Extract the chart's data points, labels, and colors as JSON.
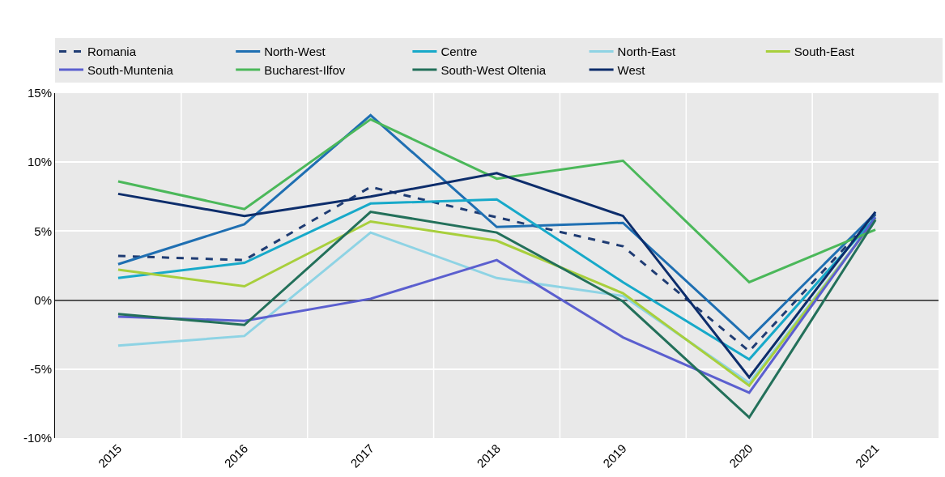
{
  "chart_data": {
    "type": "line",
    "categories": [
      "2015",
      "2016",
      "2017",
      "2018",
      "2019",
      "2020",
      "2021"
    ],
    "series": [
      {
        "name": "Romania",
        "color": "#1f3c73",
        "line_style": "dashed",
        "values": [
          3.2,
          2.9,
          8.2,
          6.0,
          3.9,
          -3.7,
          6.2
        ]
      },
      {
        "name": "North-West",
        "color": "#1f6fb2",
        "values": [
          2.6,
          5.5,
          13.4,
          5.3,
          5.6,
          -2.8,
          6.3
        ]
      },
      {
        "name": "Centre",
        "color": "#17a9c9",
        "values": [
          1.6,
          2.7,
          7.0,
          7.3,
          1.3,
          -4.3,
          6.0
        ]
      },
      {
        "name": "North-East",
        "color": "#8ed3e4",
        "values": [
          -3.3,
          -2.6,
          4.9,
          1.6,
          0.3,
          -6.0,
          5.9
        ]
      },
      {
        "name": "South-East",
        "color": "#a8cf3c",
        "values": [
          2.2,
          1.0,
          5.7,
          4.3,
          0.5,
          -6.2,
          5.9
        ]
      },
      {
        "name": "South-Muntenia",
        "color": "#5b5fcf",
        "values": [
          -1.2,
          -1.5,
          0.1,
          2.9,
          -2.7,
          -6.7,
          6.0
        ]
      },
      {
        "name": "Bucharest-Ilfov",
        "color": "#4bb85a",
        "values": [
          8.6,
          6.6,
          13.1,
          8.8,
          10.1,
          1.3,
          5.1
        ]
      },
      {
        "name": "South-West Oltenia",
        "color": "#23705a",
        "values": [
          -1.0,
          -1.8,
          6.4,
          4.9,
          -0.1,
          -8.5,
          5.8
        ]
      },
      {
        "name": "West",
        "color": "#0d2d6b",
        "values": [
          7.7,
          6.1,
          7.5,
          9.2,
          6.1,
          -5.6,
          6.4
        ]
      }
    ],
    "ylim": [
      -10,
      15
    ],
    "yticks": [
      {
        "value": -10,
        "label": "-10%"
      },
      {
        "value": -5,
        "label": "-5%"
      },
      {
        "value": 0,
        "label": "0%"
      },
      {
        "value": 5,
        "label": "5%"
      },
      {
        "value": 10,
        "label": "10%"
      },
      {
        "value": 15,
        "label": "15%"
      }
    ],
    "grid": true,
    "legend": "top",
    "marker": "none",
    "line_style": "solid"
  }
}
